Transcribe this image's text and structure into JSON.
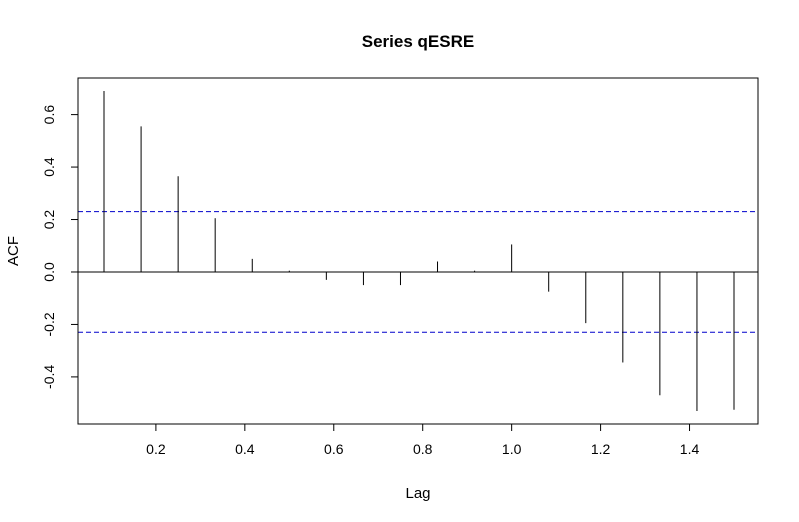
{
  "chart_data": {
    "type": "bar",
    "title": "Series qESRE",
    "xlabel": "Lag",
    "ylabel": "ACF",
    "x": [
      0.0833,
      0.1667,
      0.25,
      0.3333,
      0.4167,
      0.5,
      0.5833,
      0.6667,
      0.75,
      0.8333,
      0.9167,
      1.0,
      1.0833,
      1.1667,
      1.25,
      1.3333,
      1.4167,
      1.5
    ],
    "values": [
      0.69,
      0.555,
      0.365,
      0.205,
      0.05,
      0.005,
      -0.03,
      -0.05,
      -0.05,
      0.04,
      0.005,
      0.105,
      -0.075,
      -0.195,
      -0.345,
      -0.47,
      -0.53,
      -0.525
    ],
    "confidence_bound": 0.23,
    "confidence_color": "#0000cc",
    "xticks": [
      "0.2",
      "0.4",
      "0.6",
      "0.8",
      "1.0",
      "1.2",
      "1.4"
    ],
    "yticks": [
      "-0.4",
      "-0.2",
      "0.0",
      "0.2",
      "0.4",
      "0.6"
    ],
    "xlim": [
      0.0833,
      1.5
    ],
    "ylim": [
      -0.53,
      0.69
    ],
    "grid": false
  }
}
